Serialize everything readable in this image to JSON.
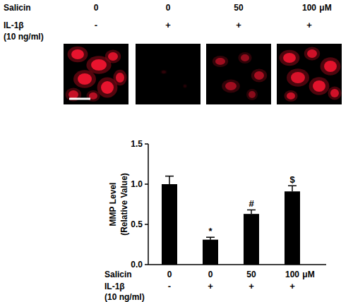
{
  "chart_data": {
    "type": "bar",
    "category_axis_label": "Salicin",
    "categories": [
      "0",
      "0",
      "50",
      "100"
    ],
    "category_unit": "μM",
    "rows": [
      {
        "label": "IL-1β",
        "sublabel": "(10 ng/ml)",
        "labels": [
          "-",
          "+",
          "+",
          "+"
        ]
      }
    ],
    "values": [
      1.0,
      0.31,
      0.63,
      0.91
    ],
    "errors": [
      0.1,
      0.03,
      0.05,
      0.07
    ],
    "significance": [
      null,
      "*",
      "#",
      "$"
    ],
    "y_label": [
      "MMP Level",
      "(Relative Value)"
    ],
    "color": "#000000",
    "ylim": [
      0,
      1.5
    ],
    "yticks": [
      {
        "value": 0,
        "label": "0.0"
      },
      0.5,
      {
        "value": 1,
        "label": "1.0"
      },
      1.5
    ],
    "grid": false
  }
}
